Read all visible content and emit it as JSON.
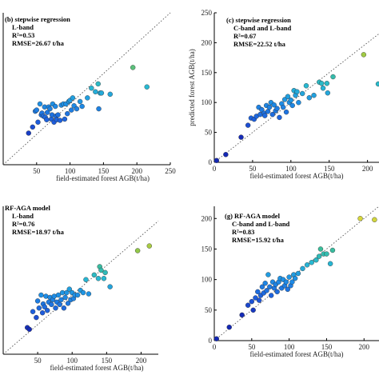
{
  "chart_data": [
    {
      "type": "scatter",
      "panel": "b",
      "annotation": [
        "(b) stepwise regression",
        "L-band",
        "R²=0.53",
        "RMSE=26.67 t/ha"
      ],
      "xlabel": "field-estimated forest AGB(t/ha)",
      "ylabel": "",
      "xticks": [
        50,
        100,
        150,
        200,
        250
      ],
      "yticks": [],
      "xlim": [
        0,
        250
      ],
      "ylim": [
        0,
        250
      ],
      "refline": [
        [
          0,
          0
        ],
        [
          250,
          250
        ]
      ],
      "points": [
        [
          38,
          52
        ],
        [
          44,
          62
        ],
        [
          48,
          88
        ],
        [
          50,
          90
        ],
        [
          52,
          70
        ],
        [
          55,
          100
        ],
        [
          57,
          82
        ],
        [
          58,
          85
        ],
        [
          60,
          80
        ],
        [
          62,
          95
        ],
        [
          63,
          78
        ],
        [
          65,
          74
        ],
        [
          66,
          86
        ],
        [
          68,
          95
        ],
        [
          70,
          92
        ],
        [
          72,
          75
        ],
        [
          73,
          82
        ],
        [
          74,
          100
        ],
        [
          76,
          70
        ],
        [
          78,
          96
        ],
        [
          79,
          80
        ],
        [
          80,
          74
        ],
        [
          82,
          82
        ],
        [
          85,
          73
        ],
        [
          87,
          98
        ],
        [
          90,
          100
        ],
        [
          92,
          75
        ],
        [
          94,
          100
        ],
        [
          96,
          84
        ],
        [
          98,
          104
        ],
        [
          100,
          106
        ],
        [
          102,
          90
        ],
        [
          104,
          110
        ],
        [
          106,
          97
        ],
        [
          110,
          92
        ],
        [
          115,
          104
        ],
        [
          118,
          96
        ],
        [
          126,
          110
        ],
        [
          132,
          126
        ],
        [
          138,
          120
        ],
        [
          142,
          133
        ],
        [
          143,
          92
        ],
        [
          145,
          118
        ],
        [
          147,
          118
        ],
        [
          160,
          116
        ],
        [
          194,
          160
        ],
        [
          215,
          128
        ]
      ]
    },
    {
      "type": "scatter",
      "panel": "c",
      "annotation": [
        "(c) stepwise regression",
        "C-band and L-band",
        "R²=0.67",
        "RMSE=22.52 t/ha"
      ],
      "xlabel": "field-estimated forest AGB(t/ha)",
      "ylabel": "predicted forest AGB(t/ha)",
      "xticks": [
        0,
        50,
        100,
        150,
        200
      ],
      "yticks": [
        0,
        50,
        100,
        150,
        200,
        250
      ],
      "xlim": [
        0,
        215
      ],
      "ylim": [
        0,
        250
      ],
      "refline": [
        [
          0,
          0
        ],
        [
          215,
          215
        ]
      ],
      "points": [
        [
          3,
          3
        ],
        [
          15,
          13
        ],
        [
          35,
          42
        ],
        [
          44,
          62
        ],
        [
          48,
          74
        ],
        [
          52,
          72
        ],
        [
          55,
          77
        ],
        [
          58,
          92
        ],
        [
          60,
          80
        ],
        [
          62,
          88
        ],
        [
          65,
          82
        ],
        [
          66,
          78
        ],
        [
          68,
          95
        ],
        [
          70,
          85
        ],
        [
          72,
          92
        ],
        [
          74,
          100
        ],
        [
          76,
          80
        ],
        [
          78,
          96
        ],
        [
          80,
          86
        ],
        [
          82,
          90
        ],
        [
          85,
          75
        ],
        [
          88,
          98
        ],
        [
          90,
          92
        ],
        [
          92,
          105
        ],
        [
          94,
          84
        ],
        [
          96,
          110
        ],
        [
          98,
          100
        ],
        [
          100,
          104
        ],
        [
          102,
          95
        ],
        [
          104,
          120
        ],
        [
          106,
          112
        ],
        [
          108,
          118
        ],
        [
          110,
          100
        ],
        [
          115,
          115
        ],
        [
          120,
          128
        ],
        [
          124,
          108
        ],
        [
          130,
          112
        ],
        [
          137,
          134
        ],
        [
          140,
          132
        ],
        [
          142,
          124
        ],
        [
          147,
          132
        ],
        [
          148,
          116
        ],
        [
          155,
          143
        ],
        [
          195,
          180
        ],
        [
          214,
          131
        ]
      ]
    },
    {
      "type": "scatter",
      "panel": "f",
      "annotation": [
        "RF-AGA model",
        "L-band",
        "R²=0.76",
        "RMSE=18.97 t/ha"
      ],
      "xlabel": "field-estimated forest AGB(t/ha)",
      "ylabel": "",
      "xticks": [
        50,
        100,
        150,
        200
      ],
      "yticks": [],
      "xlim": [
        0,
        225
      ],
      "ylim": [
        0,
        250
      ],
      "refline": [
        [
          0,
          0
        ],
        [
          225,
          225
        ]
      ],
      "points": [
        [
          35,
          45
        ],
        [
          38,
          42
        ],
        [
          43,
          72
        ],
        [
          48,
          62
        ],
        [
          50,
          90
        ],
        [
          52,
          78
        ],
        [
          55,
          100
        ],
        [
          57,
          70
        ],
        [
          58,
          85
        ],
        [
          60,
          80
        ],
        [
          62,
          98
        ],
        [
          64,
          74
        ],
        [
          66,
          88
        ],
        [
          68,
          96
        ],
        [
          70,
          84
        ],
        [
          72,
          92
        ],
        [
          74,
          98
        ],
        [
          76,
          78
        ],
        [
          78,
          88
        ],
        [
          80,
          100
        ],
        [
          82,
          84
        ],
        [
          84,
          92
        ],
        [
          86,
          104
        ],
        [
          88,
          78
        ],
        [
          90,
          96
        ],
        [
          92,
          104
        ],
        [
          94,
          86
        ],
        [
          96,
          110
        ],
        [
          98,
          92
        ],
        [
          100,
          104
        ],
        [
          102,
          94
        ],
        [
          104,
          100
        ],
        [
          108,
          100
        ],
        [
          112,
          108
        ],
        [
          116,
          104
        ],
        [
          120,
          126
        ],
        [
          124,
          102
        ],
        [
          132,
          134
        ],
        [
          138,
          128
        ],
        [
          140,
          148
        ],
        [
          142,
          142
        ],
        [
          146,
          128
        ],
        [
          148,
          138
        ],
        [
          155,
          114
        ],
        [
          195,
          175
        ],
        [
          212,
          183
        ]
      ]
    },
    {
      "type": "scatter",
      "panel": "g",
      "annotation": [
        "(g) RF-AGA model",
        "C-band and L-band",
        "R²=0.83",
        "RMSE=15.92 t/ha"
      ],
      "xlabel": "field-estimated forest AGB(t/ha)",
      "ylabel": "",
      "xticks": [
        0,
        50,
        100,
        150,
        200
      ],
      "yticks": [
        0,
        50,
        100,
        150,
        200
      ],
      "xlim": [
        0,
        220
      ],
      "ylim": [
        0,
        220
      ],
      "refline": [
        [
          0,
          0
        ],
        [
          220,
          220
        ]
      ],
      "points": [
        [
          3,
          3
        ],
        [
          20,
          22
        ],
        [
          37,
          42
        ],
        [
          45,
          58
        ],
        [
          50,
          64
        ],
        [
          52,
          50
        ],
        [
          55,
          70
        ],
        [
          58,
          80
        ],
        [
          60,
          66
        ],
        [
          62,
          74
        ],
        [
          64,
          88
        ],
        [
          66,
          78
        ],
        [
          68,
          94
        ],
        [
          70,
          82
        ],
        [
          72,
          108
        ],
        [
          74,
          88
        ],
        [
          76,
          74
        ],
        [
          78,
          96
        ],
        [
          80,
          86
        ],
        [
          82,
          92
        ],
        [
          84,
          80
        ],
        [
          86,
          96
        ],
        [
          88,
          102
        ],
        [
          90,
          86
        ],
        [
          92,
          100
        ],
        [
          94,
          90
        ],
        [
          96,
          96
        ],
        [
          98,
          84
        ],
        [
          100,
          104
        ],
        [
          102,
          90
        ],
        [
          104,
          96
        ],
        [
          106,
          108
        ],
        [
          108,
          102
        ],
        [
          112,
          110
        ],
        [
          118,
          118
        ],
        [
          124,
          124
        ],
        [
          130,
          128
        ],
        [
          136,
          132
        ],
        [
          140,
          138
        ],
        [
          142,
          150
        ],
        [
          146,
          142
        ],
        [
          150,
          142
        ],
        [
          155,
          126
        ],
        [
          158,
          148
        ],
        [
          195,
          200
        ],
        [
          214,
          198
        ]
      ]
    }
  ]
}
